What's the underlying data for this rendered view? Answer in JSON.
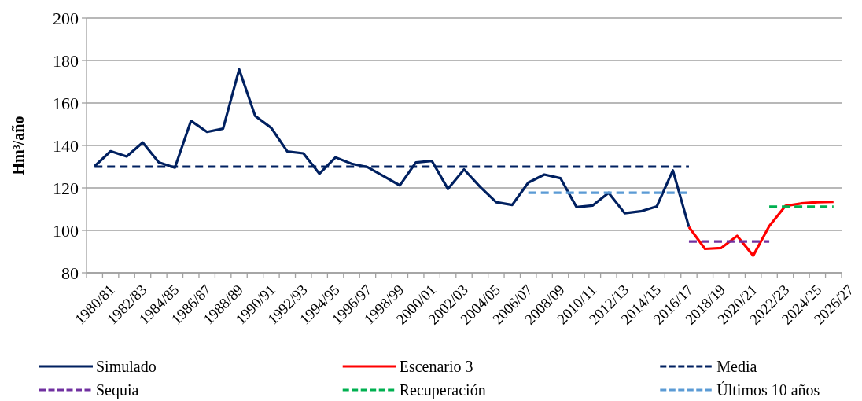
{
  "chart_data": {
    "type": "line",
    "ylabel": "Hm³/año",
    "categories": [
      "1980/81",
      null,
      "1982/83",
      null,
      "1984/85",
      null,
      "1986/87",
      null,
      "1988/89",
      null,
      "1990/91",
      null,
      "1992/93",
      null,
      "1994/95",
      null,
      "1996/97",
      null,
      "1998/99",
      null,
      "2000/01",
      null,
      "2002/03",
      null,
      "2004/05",
      null,
      "2006/07",
      null,
      "2008/09",
      null,
      "2010/11",
      null,
      "2012/13",
      null,
      "2014/15",
      null,
      "2016/17",
      null,
      "2018/19",
      null,
      "2020/21",
      null,
      "2022/23",
      null,
      "2024/25",
      null,
      "2026/27"
    ],
    "series": [
      {
        "name": "Simulado",
        "color": "#002060",
        "line_style": "solid",
        "values": [
          130.2,
          137.3,
          134.8,
          141.4,
          132,
          129.5,
          151.6,
          146.4,
          147.9,
          175.8,
          153.9,
          148.3,
          137.2,
          136.3,
          126.7,
          134.4,
          131.4,
          129.8,
          125.5,
          121.2,
          132,
          132.7,
          119.5,
          128.7,
          120.5,
          113.3,
          112,
          122.5,
          126.3,
          124.6,
          111,
          111.7,
          117.7,
          108.1,
          109,
          111.3,
          128.3,
          101.6,
          null,
          null,
          null,
          null,
          null,
          null,
          null,
          null,
          null
        ]
      },
      {
        "name": "Escenario 3",
        "color": "#ff0000",
        "line_style": "solid",
        "values": [
          null,
          null,
          null,
          null,
          null,
          null,
          null,
          null,
          null,
          null,
          null,
          null,
          null,
          null,
          null,
          null,
          null,
          null,
          null,
          null,
          null,
          null,
          null,
          null,
          null,
          null,
          null,
          null,
          null,
          null,
          null,
          null,
          null,
          null,
          null,
          null,
          null,
          101.6,
          91.3,
          91.7,
          97.4,
          88.1,
          102,
          111.5,
          112.7,
          113.3,
          113.5
        ]
      },
      {
        "name": "Media",
        "color": "#002060",
        "line_style": "dashed",
        "values": [
          130,
          130,
          130,
          130,
          130,
          130,
          130,
          130,
          130,
          130,
          130,
          130,
          130,
          130,
          130,
          130,
          130,
          130,
          130,
          130,
          130,
          130,
          130,
          130,
          130,
          130,
          130,
          130,
          130,
          130,
          130,
          130,
          130,
          130,
          130,
          130,
          130,
          130,
          null,
          null,
          null,
          null,
          null,
          null,
          null,
          null,
          null
        ]
      },
      {
        "name": "Sequia",
        "color": "#7030a0",
        "line_style": "dashed",
        "values": [
          null,
          null,
          null,
          null,
          null,
          null,
          null,
          null,
          null,
          null,
          null,
          null,
          null,
          null,
          null,
          null,
          null,
          null,
          null,
          null,
          null,
          null,
          null,
          null,
          null,
          null,
          null,
          null,
          null,
          null,
          null,
          null,
          null,
          null,
          null,
          null,
          null,
          94.8,
          94.8,
          94.8,
          94.8,
          94.8,
          94.8,
          null,
          null,
          null,
          null
        ]
      },
      {
        "name": "Recuperación",
        "color": "#00b050",
        "line_style": "dashed",
        "values": [
          null,
          null,
          null,
          null,
          null,
          null,
          null,
          null,
          null,
          null,
          null,
          null,
          null,
          null,
          null,
          null,
          null,
          null,
          null,
          null,
          null,
          null,
          null,
          null,
          null,
          null,
          null,
          null,
          null,
          null,
          null,
          null,
          null,
          null,
          null,
          null,
          null,
          null,
          null,
          null,
          null,
          null,
          111.2,
          111.2,
          111.2,
          111.2,
          111.2
        ]
      },
      {
        "name": "Últimos 10 años",
        "color": "#5b9bd5",
        "line_style": "dashed",
        "values": [
          null,
          null,
          null,
          null,
          null,
          null,
          null,
          null,
          null,
          null,
          null,
          null,
          null,
          null,
          null,
          null,
          null,
          null,
          null,
          null,
          null,
          null,
          null,
          null,
          null,
          null,
          null,
          117.7,
          117.7,
          117.7,
          117.7,
          117.7,
          117.7,
          117.7,
          117.7,
          117.7,
          117.7,
          117.7,
          null,
          null,
          null,
          null,
          null,
          null,
          null,
          null,
          null
        ]
      }
    ],
    "ylim": [
      80,
      200
    ],
    "yticks": [
      80,
      100,
      120,
      140,
      160,
      180,
      200
    ],
    "grid": "y",
    "legend": "bottom",
    "marker": "none"
  }
}
